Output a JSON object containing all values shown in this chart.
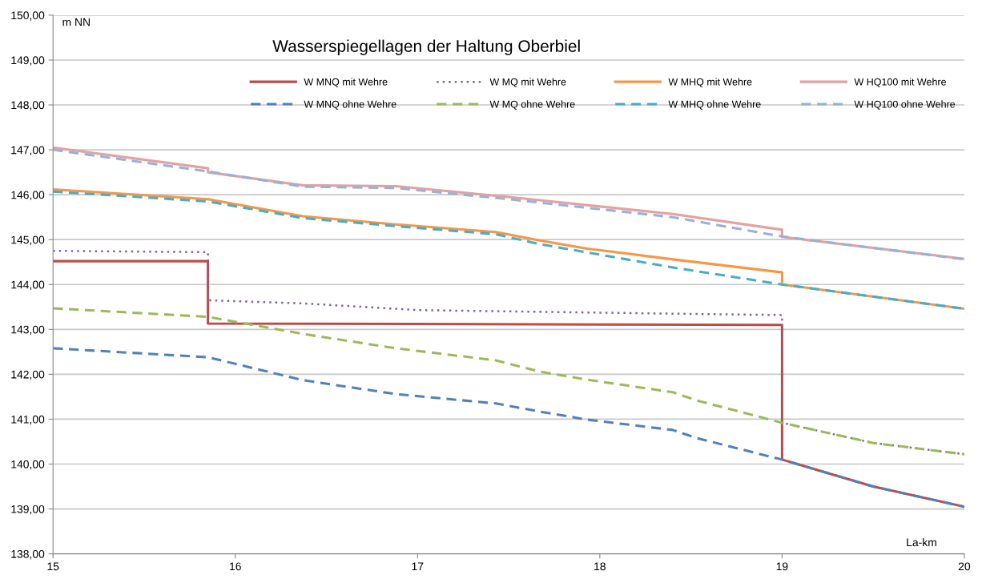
{
  "chart_data": {
    "type": "line",
    "title": "Wasserspiegellagen der Haltung Oberbiel",
    "xlabel": "La-km",
    "ylabel": "m NN",
    "xlim": [
      15,
      20
    ],
    "xticks": [
      15,
      16,
      17,
      18,
      19,
      20
    ],
    "ylim": [
      138,
      150
    ],
    "yticks": [
      {
        "value": 138,
        "label": "138,00"
      },
      {
        "value": 139,
        "label": "139,00"
      },
      {
        "value": 140,
        "label": "140,00"
      },
      {
        "value": 141,
        "label": "141,00"
      },
      {
        "value": 142,
        "label": "142,00"
      },
      {
        "value": 143,
        "label": "143,00"
      },
      {
        "value": 144,
        "label": "144,00"
      },
      {
        "value": 145,
        "label": "145,00"
      },
      {
        "value": 146,
        "label": "146,00"
      },
      {
        "value": 147,
        "label": "147,00"
      },
      {
        "value": 148,
        "label": "148,00"
      },
      {
        "value": 149,
        "label": "149,00"
      },
      {
        "value": 150,
        "label": "150,00"
      }
    ],
    "grid": "y",
    "legend": "top right",
    "series": [
      {
        "name": "W MNQ mit Wehre",
        "color": "#be4b48",
        "line_style": "solid",
        "x": [
          15,
          15.85,
          15.85,
          17,
          18,
          19,
          19,
          19.5,
          20
        ],
        "values": [
          144.52,
          144.52,
          143.13,
          143.12,
          143.11,
          143.1,
          140.1,
          139.5,
          139.05
        ]
      },
      {
        "name": "W MNQ ohne Wehre",
        "color": "#4f81bd",
        "line_style": "dashed",
        "x": [
          15,
          15.85,
          16.37,
          16.88,
          17.43,
          17.67,
          17.93,
          18.4,
          18.53,
          19,
          19.5,
          20
        ],
        "values": [
          142.58,
          142.38,
          141.87,
          141.56,
          141.35,
          141.17,
          140.99,
          140.76,
          140.58,
          140.1,
          139.5,
          139.05
        ]
      },
      {
        "name": "W MQ mit Wehre",
        "color": "#8064a2",
        "line_style": "dotted",
        "x": [
          15,
          15.85,
          15.85,
          16.37,
          17,
          18.4,
          19,
          19,
          19.5,
          20
        ],
        "values": [
          144.75,
          144.72,
          143.65,
          143.58,
          143.43,
          143.35,
          143.32,
          140.92,
          140.47,
          140.22
        ]
      },
      {
        "name": "W MQ ohne Wehre",
        "color": "#9bbb59",
        "line_style": "dashed",
        "x": [
          15,
          15.85,
          16.37,
          16.88,
          17.43,
          17.67,
          17.93,
          18.4,
          18.53,
          19,
          19.5,
          20
        ],
        "values": [
          143.47,
          143.28,
          142.9,
          142.58,
          142.31,
          142.06,
          141.88,
          141.6,
          141.42,
          140.92,
          140.47,
          140.22
        ]
      },
      {
        "name": "W MHQ mit Wehre",
        "color": "#f79646",
        "line_style": "solid",
        "x": [
          15,
          15.85,
          16.37,
          16.88,
          17.43,
          17.67,
          17.93,
          18.4,
          19,
          19,
          20
        ],
        "values": [
          146.12,
          145.9,
          145.52,
          145.34,
          145.17,
          144.98,
          144.8,
          144.56,
          144.27,
          144.0,
          143.46
        ]
      },
      {
        "name": "W MHQ ohne Wehre",
        "color": "#4bacc6",
        "line_style": "dashed",
        "x": [
          15,
          15.85,
          16.37,
          16.88,
          17.43,
          17.67,
          18.4,
          19,
          20
        ],
        "values": [
          146.07,
          145.85,
          145.48,
          145.3,
          145.12,
          144.9,
          144.38,
          144.0,
          143.46
        ]
      },
      {
        "name": "W HQ100 mit Wehre",
        "color": "#e6a0a0",
        "line_style": "solid",
        "x": [
          15,
          15.85,
          15.85,
          16.37,
          16.88,
          17.5,
          18.4,
          19,
          19,
          20
        ],
        "values": [
          147.05,
          146.59,
          146.5,
          146.21,
          146.19,
          145.95,
          145.57,
          145.22,
          145.06,
          144.57
        ]
      },
      {
        "name": "W HQ100 ohne Wehre",
        "color": "#95b3d7",
        "line_style": "dashed",
        "x": [
          15,
          15.85,
          16.37,
          16.88,
          17.5,
          18.4,
          19,
          20
        ],
        "values": [
          147.0,
          146.52,
          146.18,
          146.15,
          145.9,
          145.5,
          145.07,
          144.56
        ]
      }
    ]
  }
}
